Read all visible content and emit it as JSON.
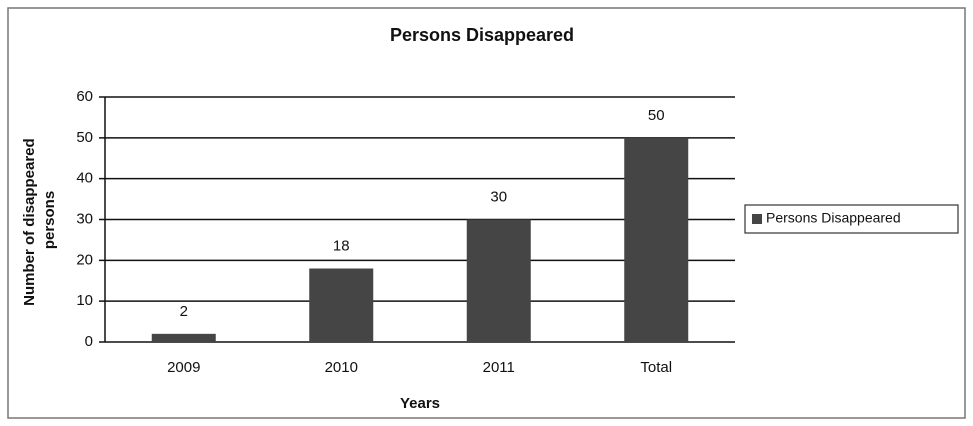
{
  "chart_data": {
    "type": "bar",
    "title": "Persons Disappeared",
    "categories": [
      "2009",
      "2010",
      "2011",
      "Total"
    ],
    "series": [
      {
        "name": "Persons Disappeared",
        "color": "#454545",
        "values": [
          2,
          18,
          30,
          50
        ]
      }
    ],
    "xlabel": "Years",
    "ylabel": [
      "Number of disappeared",
      "persons"
    ],
    "ylim": [
      0,
      60
    ],
    "yticks": [
      0,
      10,
      20,
      30,
      40,
      50,
      60
    ],
    "grid": true,
    "legend": "right"
  }
}
